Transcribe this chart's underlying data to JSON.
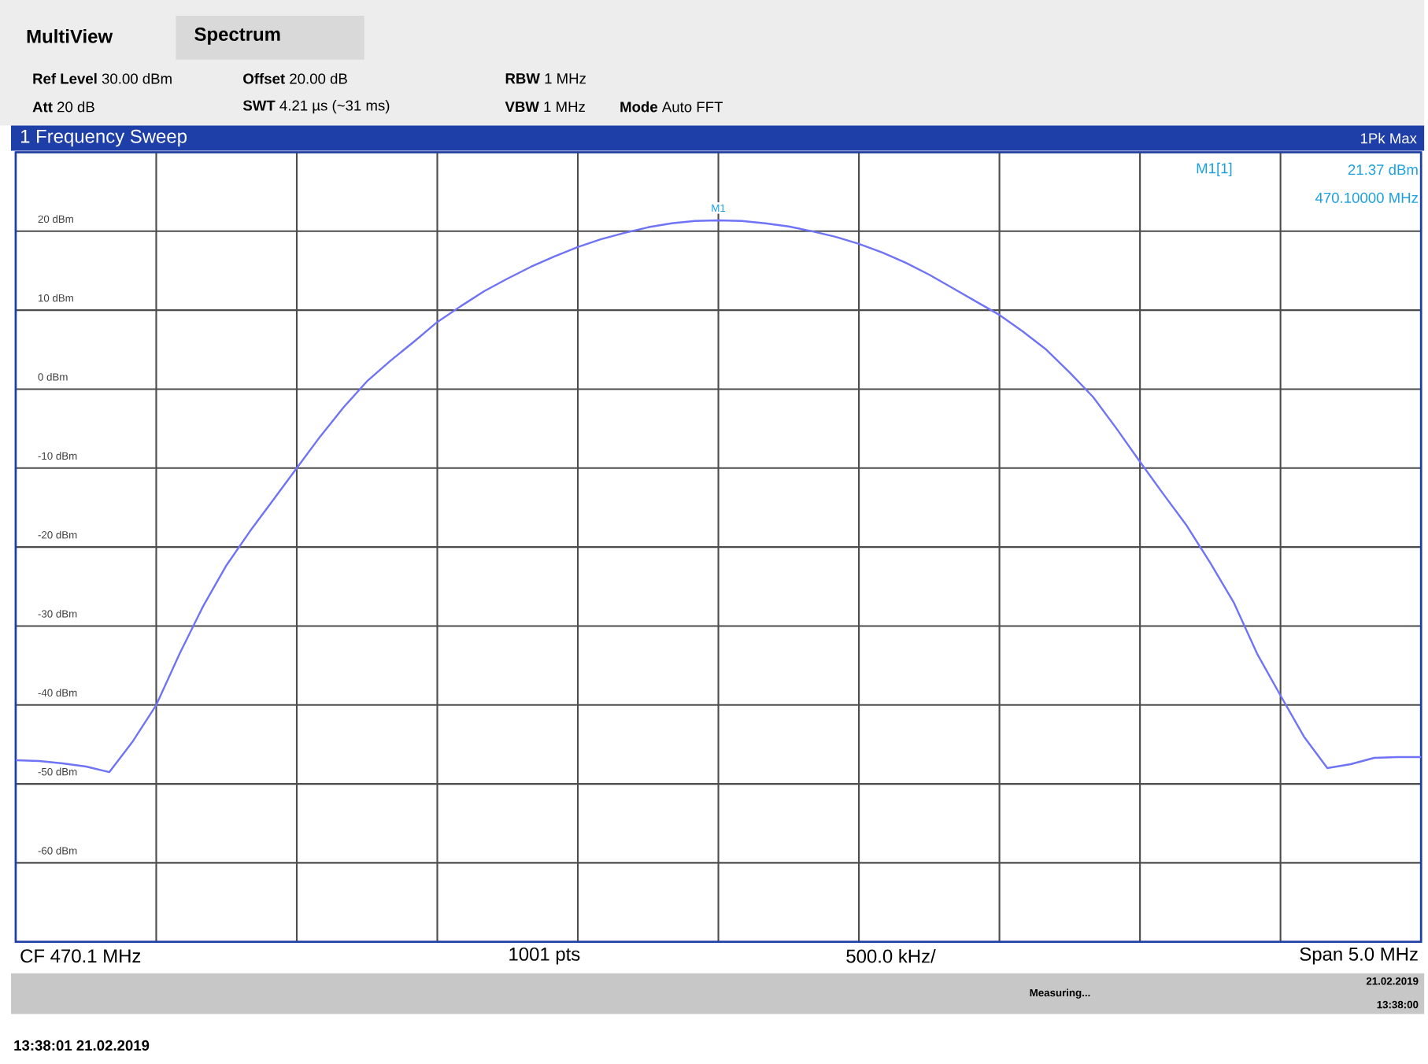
{
  "chart_data": {
    "type": "line",
    "title": "1 Frequency Sweep",
    "categories": [
      null,
      null,
      null,
      null,
      null,
      null,
      null,
      null,
      null,
      null,
      null,
      null,
      null,
      null,
      null,
      null,
      null,
      null,
      null,
      null,
      null,
      null,
      null,
      null,
      null,
      null,
      null,
      null,
      null,
      null,
      null,
      null,
      null,
      null,
      null,
      null,
      null,
      null,
      null,
      null,
      null,
      null,
      null,
      null,
      null,
      null,
      null,
      null,
      null,
      null,
      null,
      null,
      null,
      null,
      null,
      null,
      null,
      null,
      null,
      null,
      null
    ],
    "series": [
      {
        "color": "#6f73f5",
        "values": [
          -47.0,
          -47.1,
          -47.4,
          -47.8,
          -48.5,
          -44.6,
          -40,
          -33.5,
          -27.5,
          -22.3,
          -18,
          -14,
          -10,
          -6,
          -2.3,
          1.0,
          3.6,
          6.0,
          8.5,
          10.5,
          12.4,
          14.0,
          15.5,
          16.8,
          18.0,
          19.0,
          19.8,
          20.5,
          21.0,
          21.3,
          21.37,
          21.3,
          21.0,
          20.6,
          20.0,
          19.3,
          18.4,
          17.3,
          16.0,
          14.5,
          12.8,
          11.1,
          9.4,
          7.3,
          5.0,
          2.1,
          -1.0,
          -5,
          -9.2,
          -13.3,
          -17.3,
          -22,
          -27,
          -33.5,
          -38.8,
          -44,
          -48,
          -47.5,
          -46.7,
          -46.6,
          -46.6
        ]
      }
    ],
    "ylim": [
      -70,
      30
    ],
    "yticks": [
      {
        "value": -70,
        "label": null
      },
      {
        "value": -60,
        "label": "-60 dBm"
      },
      {
        "value": -50,
        "label": "-50 dBm"
      },
      {
        "value": -40,
        "label": "-40 dBm"
      },
      {
        "value": -30,
        "label": "-30 dBm"
      },
      {
        "value": -20,
        "label": "-20 dBm"
      },
      {
        "value": -10,
        "label": "-10 dBm"
      },
      {
        "value": 0,
        "label": "0 dBm"
      },
      {
        "value": 10,
        "label": "10 dBm"
      },
      {
        "value": 20,
        "label": "20 dBm"
      },
      {
        "value": 30,
        "label": null
      }
    ],
    "tick_labels": "y",
    "grid": true,
    "marker": "none",
    "line_style": "solid",
    "annotations": [
      "MultiView",
      "Spectrum",
      "**Ref Level** 30.00 dBm",
      "**Offset** 20.00 dB",
      "**RBW** 1 MHz",
      "**Att** 20 dB",
      "**SWT** 4.21 µs (~31 ms)",
      "**VBW** 1 MHz",
      "**Mode** Auto FFT",
      "1Pk Max",
      "M1[1]",
      "21.37 dBm",
      "470.10000 MHz",
      "CF 470.1 MHz",
      "1001 pts",
      "500.0 kHz/",
      "Span 5.0 MHz",
      "Measuring...",
      "21.02.2019",
      "13:38:00",
      "13:38:01 21.02.2019",
      {
        "text": "M1",
        "y": 21.37
      }
    ]
  }
}
